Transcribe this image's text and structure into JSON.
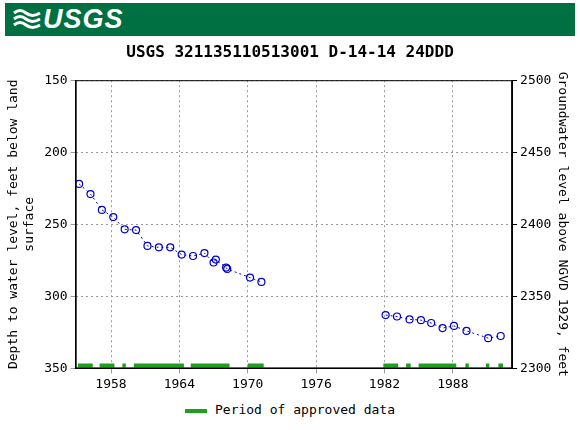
{
  "banner": "USGS",
  "chart_data": {
    "type": "line",
    "title": "USGS 321135110513001 D-14-14 24DDD",
    "ylabel": [
      "Depth to water level, feet below land",
      "surface"
    ],
    "y2label": "Groundwater level above NGVD 1929, feet",
    "xlim": [
      1954.9,
      1993.2
    ],
    "xticks": [
      1958,
      1964,
      1970,
      1976,
      1982,
      1988
    ],
    "ylim": [
      350,
      150
    ],
    "yticks": [
      150,
      200,
      250,
      300,
      350
    ],
    "y2lim": [
      2300,
      2500
    ],
    "y2ticks": [
      2300,
      2350,
      2400,
      2450,
      2500
    ],
    "grid": true,
    "legend": "bottom",
    "series": [
      {
        "color": "#0000cc",
        "marker": "circle",
        "line_style": "dotted",
        "x": [
          1955.2,
          1956.2,
          1957.2,
          1958.2,
          1959.2,
          1960.2,
          1961.2,
          1962.2,
          1963.2,
          1964.2,
          1965.2,
          1966.2,
          1967.0,
          1967.2,
          1968.1,
          1968.2,
          1970.2,
          1971.2
        ],
        "values": [
          222,
          229,
          240,
          245,
          253.5,
          254,
          265,
          266,
          266,
          271,
          272,
          270,
          276.5,
          274.5,
          280,
          281,
          287,
          290
        ]
      },
      {
        "color": "#0000cc",
        "marker": "circle",
        "line_style": "dotted",
        "x": [
          1982.1,
          1983.1,
          1984.2,
          1985.2,
          1986.1,
          1987.1,
          1988.1,
          1989.2,
          1991.1,
          1992.2
        ],
        "values": [
          313,
          314,
          316,
          316.5,
          318.5,
          322,
          320.5,
          324,
          329,
          327.5
        ]
      }
    ],
    "approved_periods": {
      "name": "Period of approved data",
      "color": "#1f9e1f",
      "ranges": [
        [
          1955.1,
          1956.4
        ],
        [
          1957.0,
          1958.3
        ],
        [
          1959.0,
          1959.3
        ],
        [
          1960.0,
          1964.4
        ],
        [
          1965.0,
          1968.4
        ],
        [
          1970.0,
          1971.4
        ],
        [
          1981.9,
          1983.2
        ],
        [
          1983.9,
          1984.3
        ],
        [
          1985.0,
          1988.3
        ],
        [
          1989.1,
          1989.4
        ],
        [
          1990.9,
          1991.2
        ],
        [
          1992.0,
          1992.4
        ]
      ]
    }
  }
}
